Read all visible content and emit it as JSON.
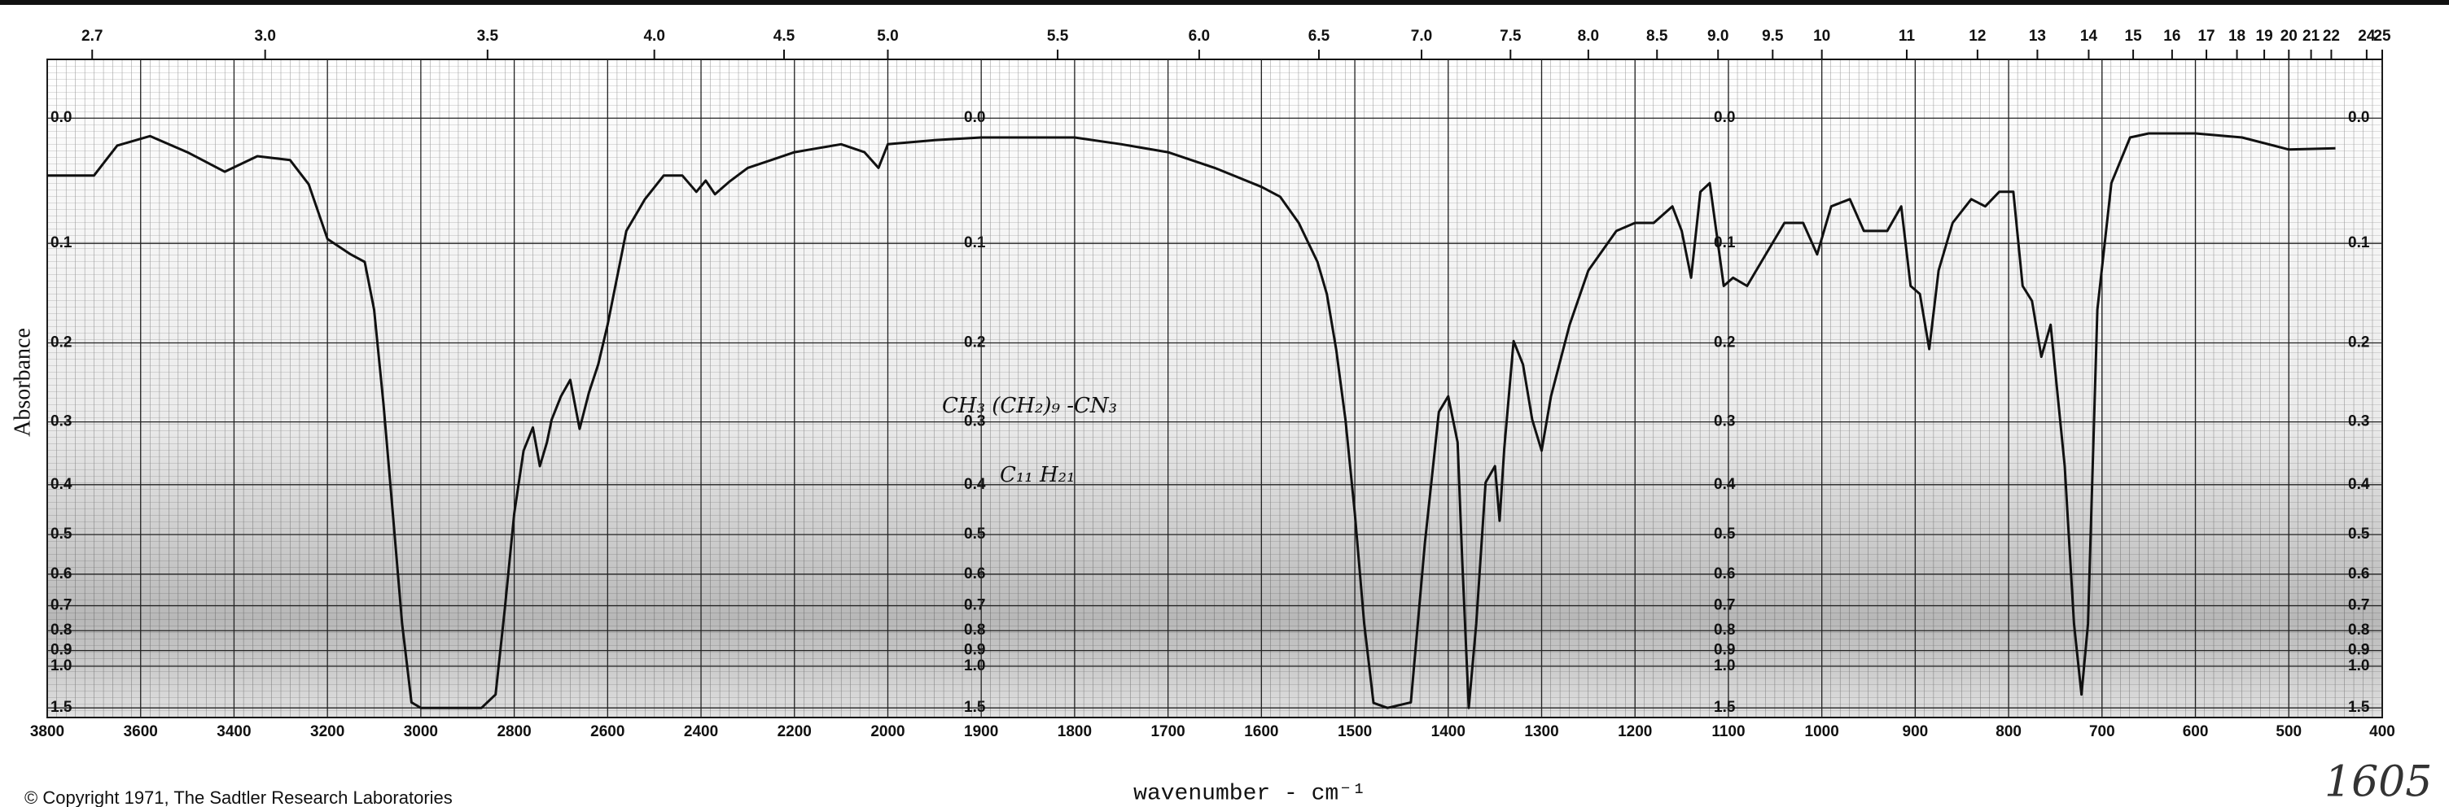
{
  "chart_data": {
    "type": "line",
    "y_label": "Absorbance",
    "x_label": "wavenumber - cm⁻¹",
    "annotations": [
      "CH₃ (CH₂)₉ -CN₃",
      "C₁₁ H₂₁"
    ],
    "copyright": "© Copyright 1971, The Sadtler Research Laboratories",
    "handwritten_number": "1605",
    "color": "#111111",
    "xlim": [
      3800,
      400
    ],
    "x_break": 2000,
    "ylim": [
      -0.04,
      1.8
    ],
    "yscale": "transmittance",
    "grid": true,
    "xticks": [
      3800,
      3600,
      3400,
      3200,
      3000,
      2800,
      2600,
      2400,
      2200,
      2000,
      1900,
      1800,
      1700,
      1600,
      1500,
      1400,
      1300,
      1200,
      1100,
      1000,
      900,
      800,
      700,
      600,
      500,
      400
    ],
    "yticks": [
      {
        "value": 0,
        "label": "0.0"
      },
      0.1,
      0.2,
      0.3,
      0.4,
      0.5,
      0.6,
      0.7,
      0.8,
      0.9,
      {
        "value": 1,
        "label": "1.0"
      },
      1.5
    ],
    "x2ticks": [
      2.7,
      {
        "value": 3,
        "label": "3.0"
      },
      3.5,
      {
        "value": 4,
        "label": "4.0"
      },
      4.5,
      {
        "value": 5,
        "label": "5.0"
      },
      5.5,
      {
        "value": 6,
        "label": "6.0"
      },
      6.5,
      {
        "value": 7,
        "label": "7.0"
      },
      7.5,
      {
        "value": 8,
        "label": "8.0"
      },
      8.5,
      {
        "value": 9,
        "label": "9.0"
      },
      9.5,
      10,
      11,
      12,
      13,
      14,
      15,
      16,
      17,
      18,
      19,
      20,
      21,
      22,
      24,
      25
    ],
    "x": [
      3800,
      3750,
      3700,
      3650,
      3580,
      3500,
      3420,
      3350,
      3280,
      3240,
      3200,
      3150,
      3120,
      3100,
      3080,
      3060,
      3040,
      3020,
      3000,
      2950,
      2870,
      2840,
      2820,
      2800,
      2780,
      2760,
      2745,
      2730,
      2720,
      2700,
      2680,
      2660,
      2640,
      2620,
      2600,
      2560,
      2520,
      2480,
      2440,
      2410,
      2390,
      2370,
      2340,
      2300,
      2250,
      2200,
      2150,
      2100,
      2050,
      2020,
      2000,
      1950,
      1900,
      1800,
      1750,
      1700,
      1650,
      1600,
      1580,
      1560,
      1540,
      1530,
      1520,
      1510,
      1500,
      1490,
      1480,
      1465,
      1440,
      1425,
      1410,
      1400,
      1390,
      1385,
      1378,
      1370,
      1360,
      1350,
      1345,
      1340,
      1330,
      1320,
      1310,
      1300,
      1290,
      1270,
      1250,
      1220,
      1200,
      1180,
      1160,
      1150,
      1140,
      1130,
      1120,
      1105,
      1095,
      1080,
      1060,
      1040,
      1020,
      1005,
      990,
      970,
      955,
      930,
      915,
      905,
      895,
      885,
      875,
      860,
      840,
      825,
      810,
      795,
      785,
      775,
      765,
      755,
      740,
      730,
      722,
      715,
      705,
      690,
      670,
      650,
      600,
      550,
      500,
      450
    ],
    "values": [
      0.043,
      0.043,
      0.043,
      0.02,
      0.013,
      0.025,
      0.04,
      0.028,
      0.031,
      0.05,
      0.096,
      0.11,
      0.117,
      0.164,
      0.275,
      0.455,
      0.77,
      1.39,
      1.5,
      1.5,
      1.5,
      1.27,
      0.71,
      0.455,
      0.343,
      0.308,
      0.368,
      0.33,
      0.297,
      0.265,
      0.244,
      0.31,
      0.26,
      0.225,
      0.18,
      0.089,
      0.062,
      0.043,
      0.043,
      0.056,
      0.047,
      0.058,
      0.048,
      0.037,
      0.031,
      0.025,
      0.022,
      0.019,
      0.025,
      0.037,
      0.019,
      0.016,
      0.014,
      0.014,
      0.019,
      0.025,
      0.037,
      0.052,
      0.06,
      0.082,
      0.117,
      0.148,
      0.207,
      0.297,
      0.455,
      0.77,
      1.4,
      1.5,
      1.39,
      0.52,
      0.286,
      0.265,
      0.33,
      0.563,
      1.5,
      0.77,
      0.396,
      0.368,
      0.47,
      0.34,
      0.198,
      0.225,
      0.297,
      0.343,
      0.265,
      0.18,
      0.125,
      0.089,
      0.082,
      0.082,
      0.068,
      0.089,
      0.132,
      0.056,
      0.049,
      0.14,
      0.132,
      0.14,
      0.11,
      0.082,
      0.082,
      0.11,
      0.068,
      0.062,
      0.089,
      0.089,
      0.068,
      0.14,
      0.148,
      0.207,
      0.125,
      0.082,
      0.062,
      0.068,
      0.056,
      0.056,
      0.14,
      0.155,
      0.216,
      0.18,
      0.368,
      0.77,
      1.27,
      0.77,
      0.164,
      0.049,
      0.014,
      0.011,
      0.011,
      0.014,
      0.023,
      0.022
    ]
  }
}
